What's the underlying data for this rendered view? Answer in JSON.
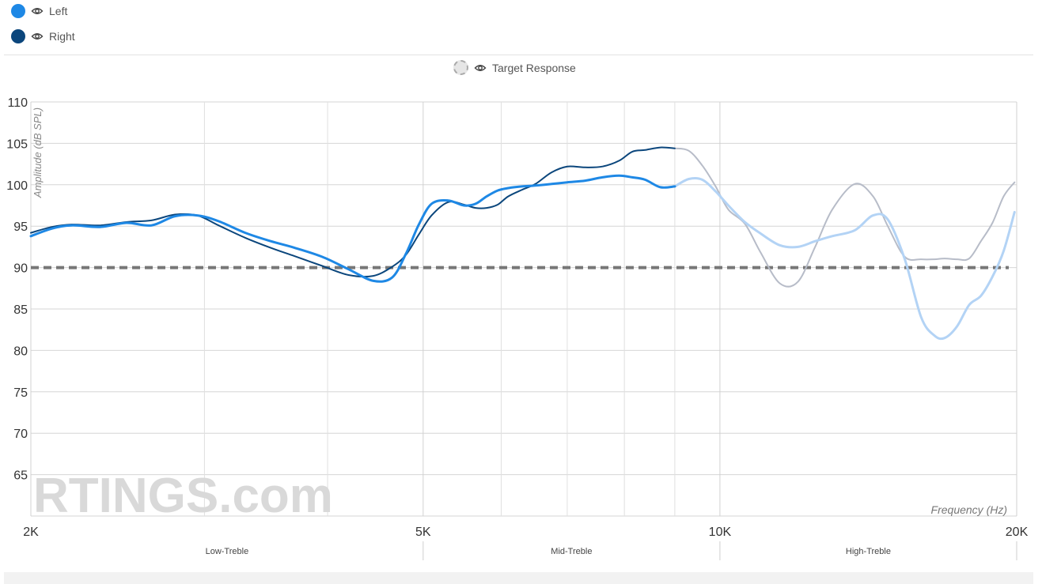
{
  "legend": {
    "left_label": "Left",
    "right_label": "Right",
    "target_label": "Target Response",
    "left_color": "#1e88e5",
    "right_color": "#0b467c",
    "target_color": "#777777"
  },
  "watermark": "RTINGS.com",
  "chart_data": {
    "type": "line",
    "xscale": "log",
    "xlim": [
      2000,
      20000
    ],
    "ylim": [
      60,
      110
    ],
    "ylabel": "Amplitude (dB SPL)",
    "xlabel": "Frequency (Hz)",
    "y_ticks": [
      "110",
      "105",
      "100",
      "95",
      "90",
      "85",
      "80",
      "75",
      "70",
      "65"
    ],
    "x_ticks": [
      {
        "value": 2000,
        "label": "2K"
      },
      {
        "value": 5000,
        "label": "5K"
      },
      {
        "value": 10000,
        "label": "10K"
      },
      {
        "value": 20000,
        "label": "20K"
      }
    ],
    "x_minor": [
      3000,
      4000,
      6000,
      7000,
      8000,
      9000
    ],
    "bands": [
      {
        "label": "Low-Treble",
        "start": 2000,
        "end": 5000
      },
      {
        "label": "Mid-Treble",
        "start": 5000,
        "end": 10000
      },
      {
        "label": "High-Treble",
        "start": 10000,
        "end": 20000
      }
    ],
    "faded_after": 9000,
    "target": {
      "name": "Target Response",
      "value": 90
    },
    "series": [
      {
        "name": "Left",
        "color": "#1e88e5",
        "faded_color": "#b3d3f5",
        "x": [
          2000,
          2100,
          2200,
          2350,
          2500,
          2650,
          2800,
          2950,
          3100,
          3300,
          3500,
          3700,
          3950,
          4200,
          4450,
          4650,
          4800,
          4950,
          5100,
          5300,
          5500,
          5650,
          5800,
          5950,
          6100,
          6300,
          6500,
          6750,
          7000,
          7300,
          7600,
          7900,
          8150,
          8400,
          8700,
          9000,
          9300,
          9600,
          9900,
          10200,
          10600,
          11000,
          11500,
          12000,
          12500,
          13000,
          13700,
          14300,
          14800,
          15400,
          16000,
          16500,
          16900,
          17400,
          17900,
          18400,
          18900,
          19400,
          19900
        ],
        "y": [
          93.8,
          94.7,
          95.1,
          94.9,
          95.4,
          95.1,
          96.2,
          96.3,
          95.6,
          94.2,
          93.2,
          92.4,
          91.3,
          89.8,
          88.4,
          88.8,
          91.6,
          95.2,
          97.7,
          98.1,
          97.5,
          97.7,
          98.6,
          99.3,
          99.6,
          99.8,
          99.9,
          100.1,
          100.3,
          100.5,
          100.9,
          101.1,
          100.9,
          100.6,
          99.7,
          99.8,
          100.7,
          100.6,
          99.2,
          97.5,
          95.5,
          94.1,
          92.7,
          92.5,
          93.2,
          93.8,
          94.5,
          96.3,
          95.8,
          91.0,
          84.0,
          81.8,
          81.5,
          82.9,
          85.5,
          86.6,
          88.9,
          92.0,
          96.7
        ]
      },
      {
        "name": "Right",
        "color": "#0b467c",
        "faded_color": "#b7bcc8",
        "x": [
          2000,
          2100,
          2200,
          2350,
          2500,
          2650,
          2800,
          2950,
          3100,
          3300,
          3500,
          3700,
          3950,
          4200,
          4450,
          4650,
          4800,
          4950,
          5100,
          5300,
          5500,
          5650,
          5800,
          5950,
          6100,
          6300,
          6500,
          6750,
          7000,
          7300,
          7600,
          7900,
          8150,
          8400,
          8700,
          9000,
          9300,
          9600,
          9900,
          10200,
          10600,
          11000,
          11500,
          12000,
          12500,
          13000,
          13700,
          14300,
          14800,
          15400,
          16000,
          16500,
          16900,
          17400,
          17900,
          18400,
          18900,
          19400,
          19900
        ],
        "y": [
          94.2,
          94.9,
          95.2,
          95.1,
          95.5,
          95.7,
          96.4,
          96.3,
          95.1,
          93.6,
          92.4,
          91.4,
          90.2,
          89.1,
          89.0,
          90.1,
          91.5,
          94.0,
          96.3,
          97.9,
          97.6,
          97.2,
          97.2,
          97.6,
          98.6,
          99.4,
          100.1,
          101.5,
          102.2,
          102.1,
          102.2,
          102.9,
          104.0,
          104.2,
          104.5,
          104.4,
          104.1,
          102.3,
          99.8,
          97.0,
          95.3,
          91.8,
          88.1,
          88.3,
          92.6,
          97.0,
          100.1,
          98.6,
          95.0,
          91.3,
          91.0,
          91.0,
          91.1,
          91.0,
          91.1,
          93.2,
          95.4,
          98.6,
          100.3
        ]
      }
    ]
  }
}
